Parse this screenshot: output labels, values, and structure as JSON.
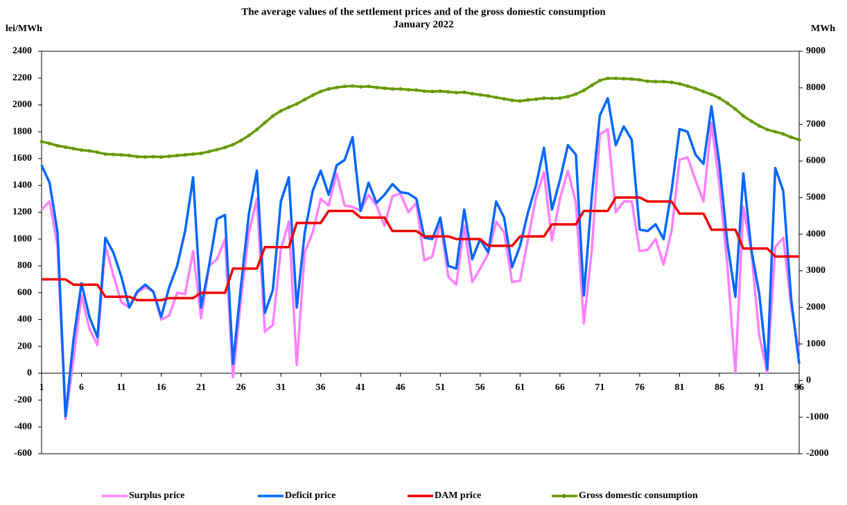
{
  "chart_data": {
    "type": "line",
    "title": "The average values of the settlement prices and of the gross domestic consumption",
    "subtitle": "January 2022",
    "y_label": "lei/MWh",
    "y2_label": "MWh",
    "x": [
      1,
      2,
      3,
      4,
      5,
      6,
      7,
      8,
      9,
      10,
      11,
      12,
      13,
      14,
      15,
      16,
      17,
      18,
      19,
      20,
      21,
      22,
      23,
      24,
      25,
      26,
      27,
      28,
      29,
      30,
      31,
      32,
      33,
      34,
      35,
      36,
      37,
      38,
      39,
      40,
      41,
      42,
      43,
      44,
      45,
      46,
      47,
      48,
      49,
      50,
      51,
      52,
      53,
      54,
      55,
      56,
      57,
      58,
      59,
      60,
      61,
      62,
      63,
      64,
      65,
      66,
      67,
      68,
      69,
      70,
      71,
      72,
      73,
      74,
      75,
      76,
      77,
      78,
      79,
      80,
      81,
      82,
      83,
      84,
      85,
      86,
      87,
      88,
      89,
      90,
      91,
      92,
      93,
      94,
      95,
      96
    ],
    "xlim": [
      1,
      96
    ],
    "xticks": [
      1,
      6,
      11,
      16,
      21,
      26,
      31,
      36,
      41,
      46,
      51,
      56,
      61,
      66,
      71,
      76,
      81,
      86,
      91,
      96
    ],
    "ylim": [
      -600,
      2400
    ],
    "yticks": [
      -600,
      -400,
      -200,
      0,
      200,
      400,
      600,
      800,
      1000,
      1200,
      1400,
      1600,
      1800,
      2000,
      2200,
      2400
    ],
    "y2lim": [
      -2000,
      9000
    ],
    "y2ticks": [
      -2000,
      -1000,
      0,
      1000,
      2000,
      3000,
      4000,
      5000,
      6000,
      7000,
      8000,
      9000
    ],
    "series": [
      {
        "name": "Surplus price",
        "color": "#ff80ff",
        "values": [
          1220,
          1280,
          950,
          -340,
          100,
          580,
          330,
          210,
          950,
          730,
          530,
          490,
          600,
          640,
          610,
          400,
          430,
          600,
          590,
          910,
          410,
          800,
          850,
          1000,
          -30,
          550,
          1050,
          1300,
          310,
          360,
          920,
          1130,
          60,
          900,
          1050,
          1300,
          1250,
          1490,
          1250,
          1240,
          1210,
          1330,
          1250,
          1100,
          1320,
          1340,
          1200,
          1270,
          840,
          870,
          1130,
          720,
          660,
          1100,
          680,
          780,
          890,
          1130,
          1050,
          680,
          690,
          1000,
          1310,
          1500,
          990,
          1300,
          1510,
          1270,
          370,
          920,
          1780,
          1820,
          1200,
          1280,
          1280,
          910,
          920,
          1000,
          810,
          1060,
          1590,
          1610,
          1440,
          1280,
          1870,
          1400,
          800,
          0,
          1240,
          910,
          280,
          0,
          940,
          1010,
          500,
          150
        ]
      },
      {
        "name": "Deficit price",
        "color": "#0066ff",
        "values": [
          1550,
          1420,
          1050,
          -320,
          250,
          670,
          420,
          270,
          1010,
          900,
          720,
          490,
          610,
          660,
          610,
          420,
          640,
          800,
          1060,
          1460,
          490,
          800,
          1150,
          1180,
          70,
          650,
          1190,
          1510,
          450,
          620,
          1280,
          1460,
          490,
          1050,
          1360,
          1510,
          1330,
          1550,
          1590,
          1760,
          1210,
          1420,
          1270,
          1330,
          1410,
          1350,
          1340,
          1300,
          1010,
          1000,
          1160,
          800,
          780,
          1220,
          850,
          1000,
          900,
          1280,
          1160,
          790,
          950,
          1200,
          1400,
          1680,
          1220,
          1440,
          1700,
          1630,
          580,
          1320,
          1920,
          2050,
          1700,
          1840,
          1740,
          1070,
          1060,
          1110,
          1000,
          1360,
          1820,
          1800,
          1630,
          1560,
          1990,
          1560,
          970,
          570,
          1490,
          920,
          590,
          30,
          1530,
          1360,
          550,
          70
        ]
      },
      {
        "name": "DAM price",
        "color": "#ee0000",
        "values": [
          700,
          700,
          700,
          700,
          660,
          660,
          660,
          660,
          570,
          570,
          570,
          570,
          545,
          545,
          545,
          545,
          560,
          560,
          560,
          560,
          600,
          600,
          600,
          600,
          780,
          780,
          780,
          780,
          940,
          940,
          940,
          940,
          1120,
          1120,
          1120,
          1120,
          1210,
          1210,
          1210,
          1210,
          1160,
          1160,
          1160,
          1160,
          1060,
          1060,
          1060,
          1060,
          1020,
          1020,
          1020,
          1020,
          1000,
          1000,
          1000,
          1000,
          950,
          950,
          950,
          950,
          1020,
          1020,
          1020,
          1020,
          1110,
          1110,
          1110,
          1110,
          1210,
          1210,
          1210,
          1210,
          1310,
          1310,
          1310,
          1310,
          1280,
          1280,
          1280,
          1280,
          1190,
          1190,
          1190,
          1190,
          1070,
          1070,
          1070,
          1070,
          930,
          930,
          930,
          930,
          870,
          870,
          870,
          870
        ]
      },
      {
        "name": "Gross domestic consumption",
        "color": "#669900",
        "axis": "y2",
        "markers": true,
        "values": [
          6530,
          6480,
          6420,
          6380,
          6340,
          6300,
          6280,
          6240,
          6190,
          6180,
          6170,
          6150,
          6120,
          6110,
          6120,
          6110,
          6130,
          6150,
          6170,
          6190,
          6210,
          6260,
          6310,
          6370,
          6450,
          6560,
          6700,
          6860,
          7050,
          7230,
          7370,
          7470,
          7560,
          7680,
          7800,
          7900,
          7970,
          8010,
          8040,
          8050,
          8030,
          8040,
          8010,
          7990,
          7970,
          7970,
          7950,
          7940,
          7910,
          7900,
          7910,
          7890,
          7870,
          7880,
          7840,
          7810,
          7780,
          7740,
          7700,
          7660,
          7640,
          7670,
          7690,
          7720,
          7710,
          7720,
          7760,
          7830,
          7930,
          8070,
          8200,
          8260,
          8260,
          8250,
          8240,
          8220,
          8180,
          8170,
          8170,
          8150,
          8110,
          8050,
          7980,
          7900,
          7820,
          7720,
          7580,
          7420,
          7230,
          7090,
          6960,
          6860,
          6800,
          6740,
          6650,
          6580
        ]
      }
    ]
  }
}
